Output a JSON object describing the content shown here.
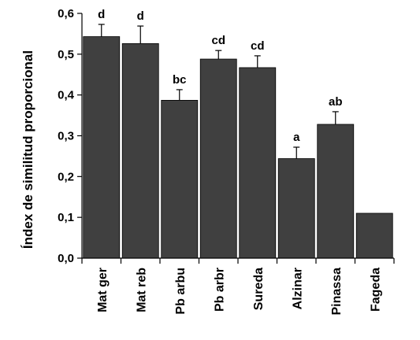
{
  "chart_data": {
    "type": "bar",
    "ylabel": "Índex de similitud proporcional",
    "xlabel": "",
    "ylim": [
      0,
      0.6
    ],
    "yticks": [
      0,
      0.1,
      0.2,
      0.3,
      0.4,
      0.5,
      0.6
    ],
    "ytick_labels": [
      "0,0",
      "0,1",
      "0,2",
      "0,3",
      "0,4",
      "0,5",
      "0,6"
    ],
    "grid": false,
    "categories": [
      "Mat ger",
      "Mat reb",
      "Pb arbu",
      "Pb arbr",
      "Sureda",
      "Alzinar",
      "Pinassa",
      "Fageda"
    ],
    "values": [
      0.543,
      0.526,
      0.387,
      0.488,
      0.467,
      0.244,
      0.328,
      0.11
    ],
    "errors": [
      0.03,
      0.043,
      0.026,
      0.021,
      0.029,
      0.028,
      0.031,
      0
    ],
    "significance_labels": [
      "d",
      "d",
      "bc",
      "cd",
      "cd",
      "a",
      "ab",
      ""
    ],
    "bar_color": "#404040"
  }
}
